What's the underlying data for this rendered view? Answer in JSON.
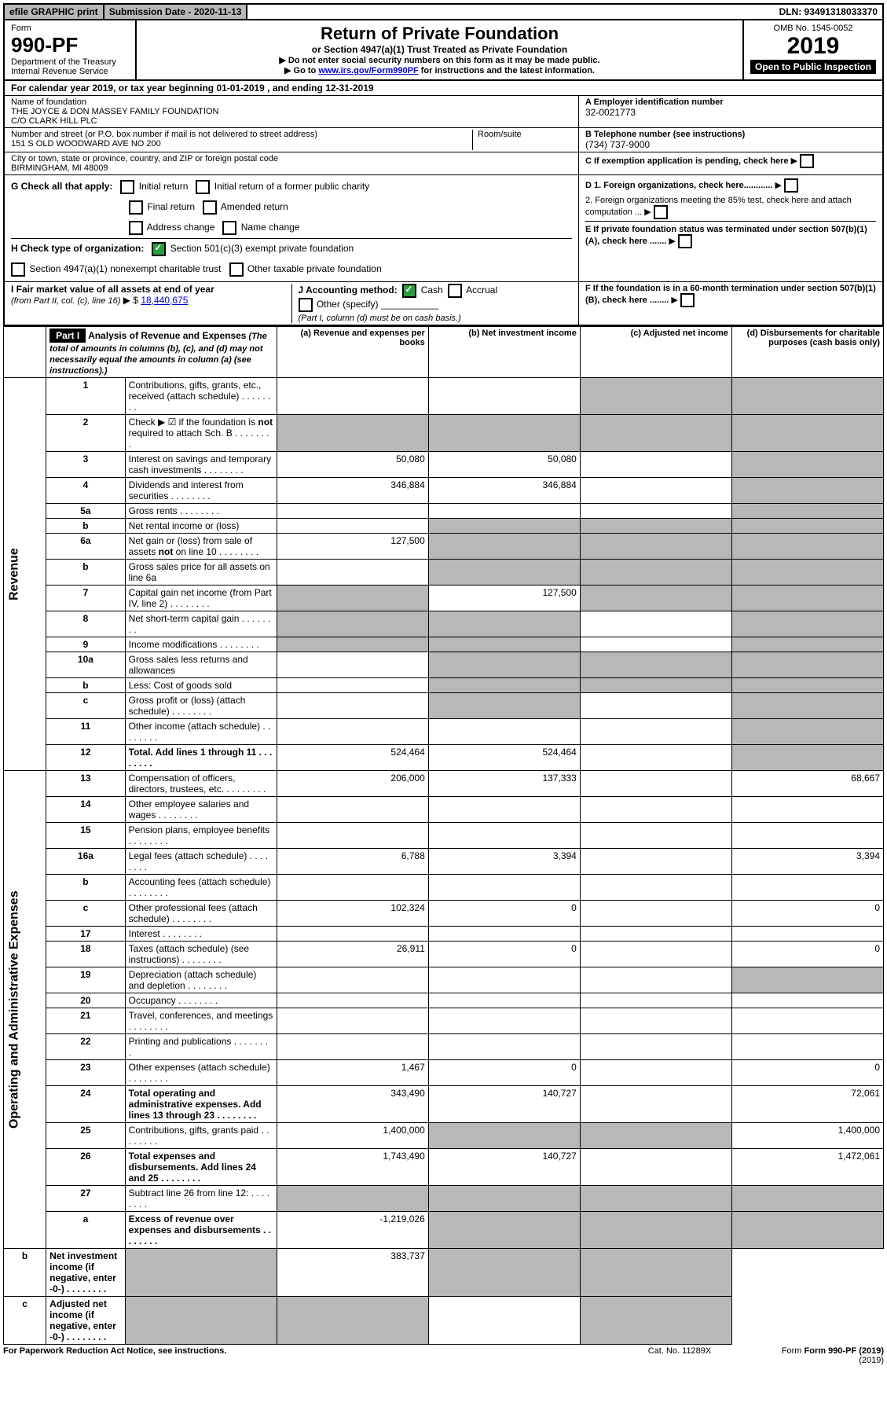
{
  "topbar": {
    "efile": "efile GRAPHIC print",
    "subdate_label": "Submission Date - 2020-11-13",
    "dln": "DLN: 93491318033370"
  },
  "header": {
    "form_label": "Form",
    "form_number": "990-PF",
    "dept": "Department of the Treasury",
    "irs": "Internal Revenue Service",
    "title": "Return of Private Foundation",
    "subtitle": "or Section 4947(a)(1) Trust Treated as Private Foundation",
    "warn1": "▶ Do not enter social security numbers on this form as it may be made public.",
    "warn2_pre": "▶ Go to ",
    "warn2_link": "www.irs.gov/Form990PF",
    "warn2_post": " for instructions and the latest information.",
    "omb": "OMB No. 1545-0052",
    "year": "2019",
    "open": "Open to Public Inspection"
  },
  "calyear": {
    "pre": "For calendar year 2019, or tax year beginning ",
    "begin": "01-01-2019",
    "mid": " , and ending ",
    "end": "12-31-2019"
  },
  "id": {
    "name_label": "Name of foundation",
    "name1": "THE JOYCE & DON MASSEY FAMILY FOUNDATION",
    "name2": "C/O CLARK HILL PLC",
    "addr_label": "Number and street (or P.O. box number if mail is not delivered to street address)",
    "addr": "151 S OLD WOODWARD AVE NO 200",
    "room_label": "Room/suite",
    "city_label": "City or town, state or province, country, and ZIP or foreign postal code",
    "city": "BIRMINGHAM, MI  48009",
    "A_label": "A Employer identification number",
    "A_val": "32-0021773",
    "B_label": "B Telephone number (see instructions)",
    "B_val": "(734) 737-9000",
    "C_label": "C If exemption application is pending, check here",
    "D1": "D 1. Foreign organizations, check here............",
    "D2": "2. Foreign organizations meeting the 85% test, check here and attach computation ...",
    "E": "E  If private foundation status was terminated under section 507(b)(1)(A), check here .......",
    "F": "F  If the foundation is in a 60-month termination under section 507(b)(1)(B), check here ........"
  },
  "G": {
    "label": "G Check all that apply:",
    "initial": "Initial return",
    "initial_former": "Initial return of a former public charity",
    "final": "Final return",
    "amended": "Amended return",
    "address": "Address change",
    "name": "Name change"
  },
  "H": {
    "label": "H Check type of organization:",
    "501c3": "Section 501(c)(3) exempt private foundation",
    "4947": "Section 4947(a)(1) nonexempt charitable trust",
    "other": "Other taxable private foundation"
  },
  "I": {
    "label1": "I Fair market value of all assets at end of year ",
    "label2": "(from Part II, col. (c), line 16)",
    "arrow": "▶ $",
    "value": "18,440,675"
  },
  "J": {
    "label": "J Accounting method:",
    "cash": "Cash",
    "accrual": "Accrual",
    "other": "Other (specify)",
    "note": "(Part I, column (d) must be on cash basis.)"
  },
  "part1": {
    "header": "Part I",
    "title": "Analysis of Revenue and Expenses",
    "note": " (The total of amounts in columns (b), (c), and (d) may not necessarily equal the amounts in column (a) (see instructions).)",
    "col_a": "(a) Revenue and expenses per books",
    "col_b": "(b) Net investment income",
    "col_c": "(c) Adjusted net income",
    "col_d": "(d) Disbursements for charitable purposes (cash basis only)",
    "rev_label": "Revenue",
    "exp_label": "Operating and Administrative Expenses"
  },
  "lines": [
    {
      "n": "1",
      "desc": "Contributions, gifts, grants, etc., received (attach schedule)",
      "a": "",
      "b": "",
      "c": "s",
      "d": "s"
    },
    {
      "n": "2",
      "desc": "Check ▶ ☑ if the foundation is not required to attach Sch. B",
      "a": "s",
      "b": "s",
      "c": "s",
      "d": "s",
      "checked": true
    },
    {
      "n": "3",
      "desc": "Interest on savings and temporary cash investments",
      "a": "50,080",
      "b": "50,080",
      "c": "",
      "d": "s"
    },
    {
      "n": "4",
      "desc": "Dividends and interest from securities",
      "a": "346,884",
      "b": "346,884",
      "c": "",
      "d": "s"
    },
    {
      "n": "5a",
      "desc": "Gross rents",
      "a": "",
      "b": "",
      "c": "",
      "d": "s"
    },
    {
      "n": "b",
      "desc": "Net rental income or (loss)",
      "a": "",
      "b": "s",
      "c": "s",
      "d": "s",
      "inline": true
    },
    {
      "n": "6a",
      "desc": "Net gain or (loss) from sale of assets not on line 10",
      "a": "127,500",
      "b": "s",
      "c": "s",
      "d": "s"
    },
    {
      "n": "b",
      "desc": "Gross sales price for all assets on line 6a",
      "a": "",
      "b": "s",
      "c": "s",
      "d": "s",
      "inline": true
    },
    {
      "n": "7",
      "desc": "Capital gain net income (from Part IV, line 2)",
      "a": "s",
      "b": "127,500",
      "c": "s",
      "d": "s"
    },
    {
      "n": "8",
      "desc": "Net short-term capital gain",
      "a": "s",
      "b": "s",
      "c": "",
      "d": "s"
    },
    {
      "n": "9",
      "desc": "Income modifications",
      "a": "s",
      "b": "s",
      "c": "",
      "d": "s"
    },
    {
      "n": "10a",
      "desc": "Gross sales less returns and allowances",
      "a": "",
      "b": "s",
      "c": "s",
      "d": "s",
      "inline": true
    },
    {
      "n": "b",
      "desc": "Less: Cost of goods sold",
      "a": "",
      "b": "s",
      "c": "s",
      "d": "s",
      "inline": true
    },
    {
      "n": "c",
      "desc": "Gross profit or (loss) (attach schedule)",
      "a": "",
      "b": "s",
      "c": "",
      "d": "s"
    },
    {
      "n": "11",
      "desc": "Other income (attach schedule)",
      "a": "",
      "b": "",
      "c": "",
      "d": "s"
    },
    {
      "n": "12",
      "desc": "Total. Add lines 1 through 11",
      "a": "524,464",
      "b": "524,464",
      "c": "",
      "d": "s",
      "bold": true
    },
    {
      "n": "13",
      "desc": "Compensation of officers, directors, trustees, etc.",
      "a": "206,000",
      "b": "137,333",
      "c": "",
      "d": "68,667"
    },
    {
      "n": "14",
      "desc": "Other employee salaries and wages",
      "a": "",
      "b": "",
      "c": "",
      "d": ""
    },
    {
      "n": "15",
      "desc": "Pension plans, employee benefits",
      "a": "",
      "b": "",
      "c": "",
      "d": ""
    },
    {
      "n": "16a",
      "desc": "Legal fees (attach schedule)",
      "a": "6,788",
      "b": "3,394",
      "c": "",
      "d": "3,394"
    },
    {
      "n": "b",
      "desc": "Accounting fees (attach schedule)",
      "a": "",
      "b": "",
      "c": "",
      "d": ""
    },
    {
      "n": "c",
      "desc": "Other professional fees (attach schedule)",
      "a": "102,324",
      "b": "0",
      "c": "",
      "d": "0"
    },
    {
      "n": "17",
      "desc": "Interest",
      "a": "",
      "b": "",
      "c": "",
      "d": ""
    },
    {
      "n": "18",
      "desc": "Taxes (attach schedule) (see instructions)",
      "a": "26,911",
      "b": "0",
      "c": "",
      "d": "0"
    },
    {
      "n": "19",
      "desc": "Depreciation (attach schedule) and depletion",
      "a": "",
      "b": "",
      "c": "",
      "d": "s"
    },
    {
      "n": "20",
      "desc": "Occupancy",
      "a": "",
      "b": "",
      "c": "",
      "d": ""
    },
    {
      "n": "21",
      "desc": "Travel, conferences, and meetings",
      "a": "",
      "b": "",
      "c": "",
      "d": ""
    },
    {
      "n": "22",
      "desc": "Printing and publications",
      "a": "",
      "b": "",
      "c": "",
      "d": ""
    },
    {
      "n": "23",
      "desc": "Other expenses (attach schedule)",
      "a": "1,467",
      "b": "0",
      "c": "",
      "d": "0"
    },
    {
      "n": "24",
      "desc": "Total operating and administrative expenses. Add lines 13 through 23",
      "a": "343,490",
      "b": "140,727",
      "c": "",
      "d": "72,061",
      "bold": true
    },
    {
      "n": "25",
      "desc": "Contributions, gifts, grants paid",
      "a": "1,400,000",
      "b": "s",
      "c": "s",
      "d": "1,400,000"
    },
    {
      "n": "26",
      "desc": "Total expenses and disbursements. Add lines 24 and 25",
      "a": "1,743,490",
      "b": "140,727",
      "c": "",
      "d": "1,472,061",
      "bold": true
    },
    {
      "n": "27",
      "desc": "Subtract line 26 from line 12:",
      "a": "s",
      "b": "s",
      "c": "s",
      "d": "s"
    },
    {
      "n": "a",
      "desc": "Excess of revenue over expenses and disbursements",
      "a": "-1,219,026",
      "b": "s",
      "c": "s",
      "d": "s",
      "bold": true
    },
    {
      "n": "b",
      "desc": "Net investment income (if negative, enter -0-)",
      "a": "s",
      "b": "383,737",
      "c": "s",
      "d": "s",
      "bold": true
    },
    {
      "n": "c",
      "desc": "Adjusted net income (if negative, enter -0-)",
      "a": "s",
      "b": "s",
      "c": "",
      "d": "s",
      "bold": true
    }
  ],
  "footer": {
    "left": "For Paperwork Reduction Act Notice, see instructions.",
    "cat": "Cat. No. 11289X",
    "right": "Form 990-PF (2019)"
  }
}
